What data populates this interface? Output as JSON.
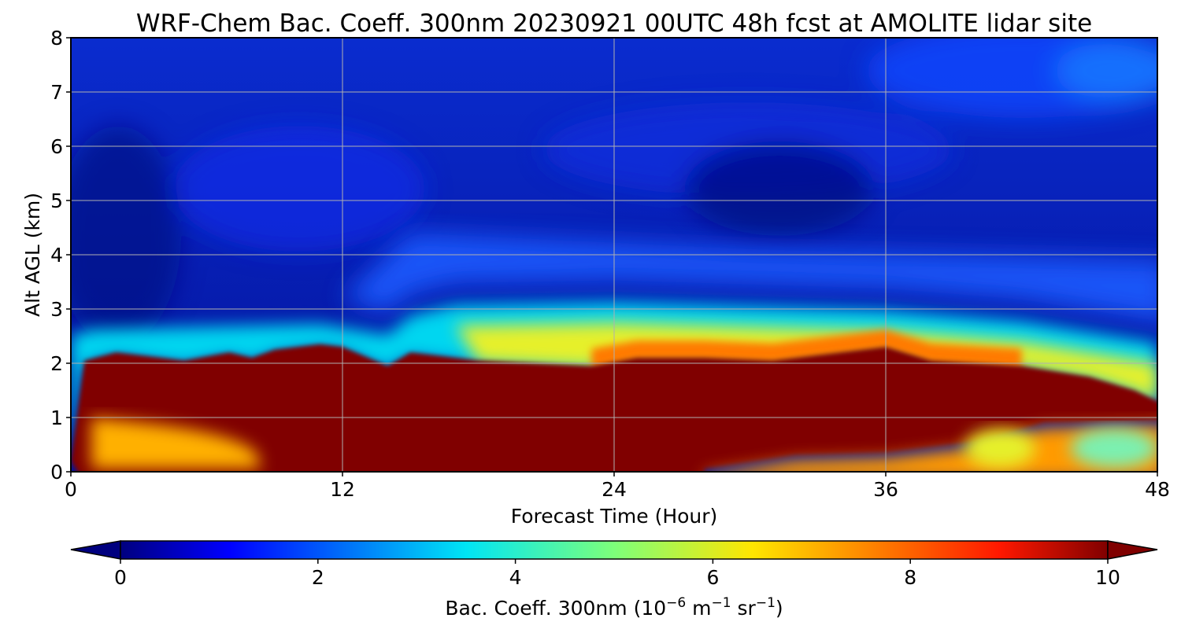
{
  "chart_data": {
    "type": "heatmap",
    "title": "WRF-Chem Bac. Coeff. 300nm  20230921 00UTC 48h fcst at AMOLITE lidar site",
    "xlabel": "Forecast Time (Hour)",
    "ylabel": "Alt AGL (km)",
    "xlim": [
      0,
      48
    ],
    "ylim": [
      0,
      8
    ],
    "x_ticks": [
      "0",
      "12",
      "24",
      "36",
      "48"
    ],
    "y_ticks": [
      "0",
      "1",
      "2",
      "3",
      "4",
      "5",
      "6",
      "7",
      "8"
    ],
    "grid": true,
    "colormap": "jet",
    "colorbar": {
      "orientation": "horizontal",
      "extend": "both",
      "range": [
        0,
        10
      ],
      "ticks": [
        "0",
        "2",
        "4",
        "6",
        "8",
        "10"
      ],
      "label_main": "Bac. Coeff. 300nm  (10",
      "label_exp1": "−6",
      "label_mid": " m",
      "label_exp2": "−1",
      "label_mid2": " sr",
      "label_exp3": "−1",
      "label_end": ")"
    },
    "dense_layer_top_km": {
      "x": [
        0,
        0.6,
        2,
        5,
        7,
        8,
        9,
        11,
        12,
        14,
        15,
        18,
        23,
        25,
        28,
        31,
        33,
        36,
        38,
        42,
        45,
        47,
        48
      ],
      "value": [
        0.2,
        2.05,
        2.2,
        2.05,
        2.2,
        2.1,
        2.25,
        2.35,
        2.3,
        1.95,
        2.2,
        2.05,
        1.95,
        2.1,
        2.1,
        2.05,
        2.15,
        2.3,
        2.05,
        1.95,
        1.75,
        1.5,
        1.3
      ]
    },
    "aerosol_layer_top_km": {
      "x": [
        0,
        1,
        11,
        14,
        15,
        17,
        24,
        36,
        42,
        48
      ],
      "value": [
        2.35,
        2.45,
        2.55,
        2.35,
        2.7,
        2.9,
        2.95,
        2.8,
        2.6,
        2.2
      ]
    },
    "dense_layer_bottom_km": {
      "x": [
        28,
        32,
        36,
        40,
        43,
        48
      ],
      "value": [
        0.05,
        0.3,
        0.35,
        0.55,
        0.9,
        0.95
      ]
    }
  }
}
